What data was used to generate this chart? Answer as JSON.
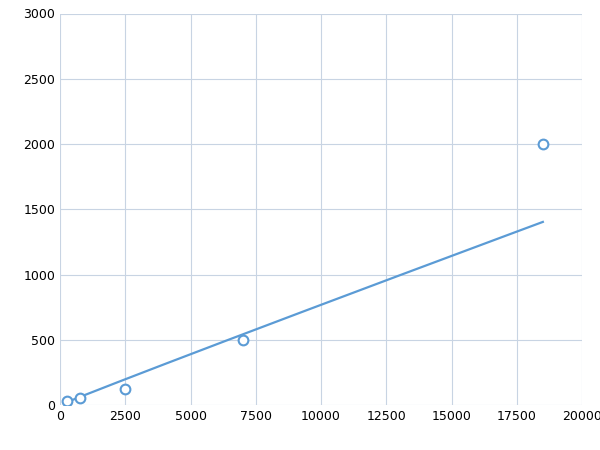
{
  "x": [
    250,
    750,
    2500,
    7000,
    18500
  ],
  "y": [
    30,
    50,
    125,
    500,
    2000
  ],
  "line_color": "#5b9bd5",
  "marker_color": "#5b9bd5",
  "marker_size": 7,
  "xlim": [
    0,
    20000
  ],
  "ylim": [
    0,
    3000
  ],
  "xticks": [
    0,
    2500,
    5000,
    7500,
    10000,
    12500,
    15000,
    17500,
    20000
  ],
  "yticks": [
    0,
    500,
    1000,
    1500,
    2000,
    2500,
    3000
  ],
  "grid_color": "#c8d4e3",
  "background_color": "#ffffff",
  "line_width": 1.6,
  "figsize": [
    6.0,
    4.5
  ],
  "dpi": 100
}
